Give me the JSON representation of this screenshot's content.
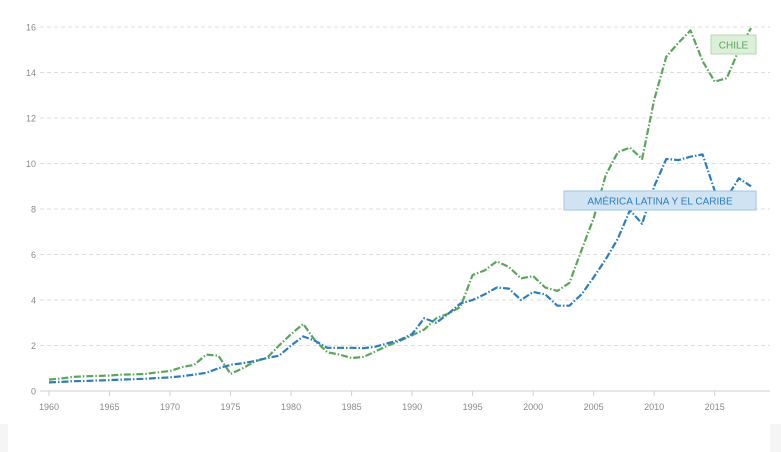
{
  "chart_data": {
    "type": "line",
    "title": "",
    "xlabel": "",
    "ylabel": "",
    "xlim": [
      1960,
      2018
    ],
    "ylim": [
      0,
      16
    ],
    "grid": true,
    "legend": "inline labels",
    "x_ticks": [
      "1960",
      "1965",
      "1970",
      "1975",
      "1980",
      "1985",
      "1990",
      "1995",
      "2000",
      "2005",
      "2010",
      "2015"
    ],
    "y_ticks": [
      "0",
      "2",
      "4",
      "6",
      "8",
      "10",
      "12",
      "14",
      "16"
    ],
    "x": [
      1960,
      1961,
      1962,
      1963,
      1964,
      1965,
      1966,
      1967,
      1968,
      1969,
      1970,
      1971,
      1972,
      1973,
      1974,
      1975,
      1976,
      1977,
      1978,
      1979,
      1980,
      1981,
      1982,
      1983,
      1984,
      1985,
      1986,
      1987,
      1988,
      1989,
      1990,
      1991,
      1992,
      1993,
      1994,
      1995,
      1996,
      1997,
      1998,
      1999,
      2000,
      2001,
      2002,
      2003,
      2004,
      2005,
      2006,
      2007,
      2008,
      2009,
      2010,
      2011,
      2012,
      2013,
      2014,
      2015,
      2016,
      2017,
      2018
    ],
    "series": [
      {
        "name": "CHILE",
        "color": "#5ba55b",
        "values": [
          0.5,
          0.55,
          0.62,
          0.65,
          0.66,
          0.68,
          0.72,
          0.73,
          0.75,
          0.82,
          0.88,
          1.05,
          1.15,
          1.6,
          1.55,
          0.75,
          1.0,
          1.3,
          1.45,
          2.0,
          2.5,
          2.95,
          2.2,
          1.7,
          1.6,
          1.45,
          1.5,
          1.75,
          2.0,
          2.2,
          2.45,
          2.7,
          3.2,
          3.4,
          3.7,
          5.1,
          5.3,
          5.7,
          5.45,
          4.95,
          5.05,
          4.55,
          4.4,
          4.75,
          6.2,
          7.6,
          9.5,
          10.5,
          10.7,
          10.2,
          12.8,
          14.7,
          15.3,
          15.85,
          14.5,
          13.6,
          13.75,
          15.0,
          15.95
        ]
      },
      {
        "name": "AMÉRICA LATINA Y EL CARIBE",
        "color": "#2d7dba",
        "values": [
          0.38,
          0.4,
          0.43,
          0.44,
          0.46,
          0.48,
          0.5,
          0.52,
          0.54,
          0.57,
          0.6,
          0.65,
          0.72,
          0.8,
          1.0,
          1.15,
          1.22,
          1.32,
          1.45,
          1.55,
          2.0,
          2.4,
          2.2,
          1.9,
          1.9,
          1.9,
          1.88,
          1.95,
          2.1,
          2.25,
          2.5,
          3.2,
          3.0,
          3.4,
          3.85,
          4.0,
          4.25,
          4.55,
          4.5,
          4.0,
          4.35,
          4.25,
          3.75,
          3.75,
          4.25,
          5.0,
          5.8,
          6.7,
          7.95,
          7.35,
          9.0,
          10.2,
          10.15,
          10.3,
          10.4,
          8.8,
          8.5,
          9.35,
          9.0
        ]
      }
    ]
  }
}
